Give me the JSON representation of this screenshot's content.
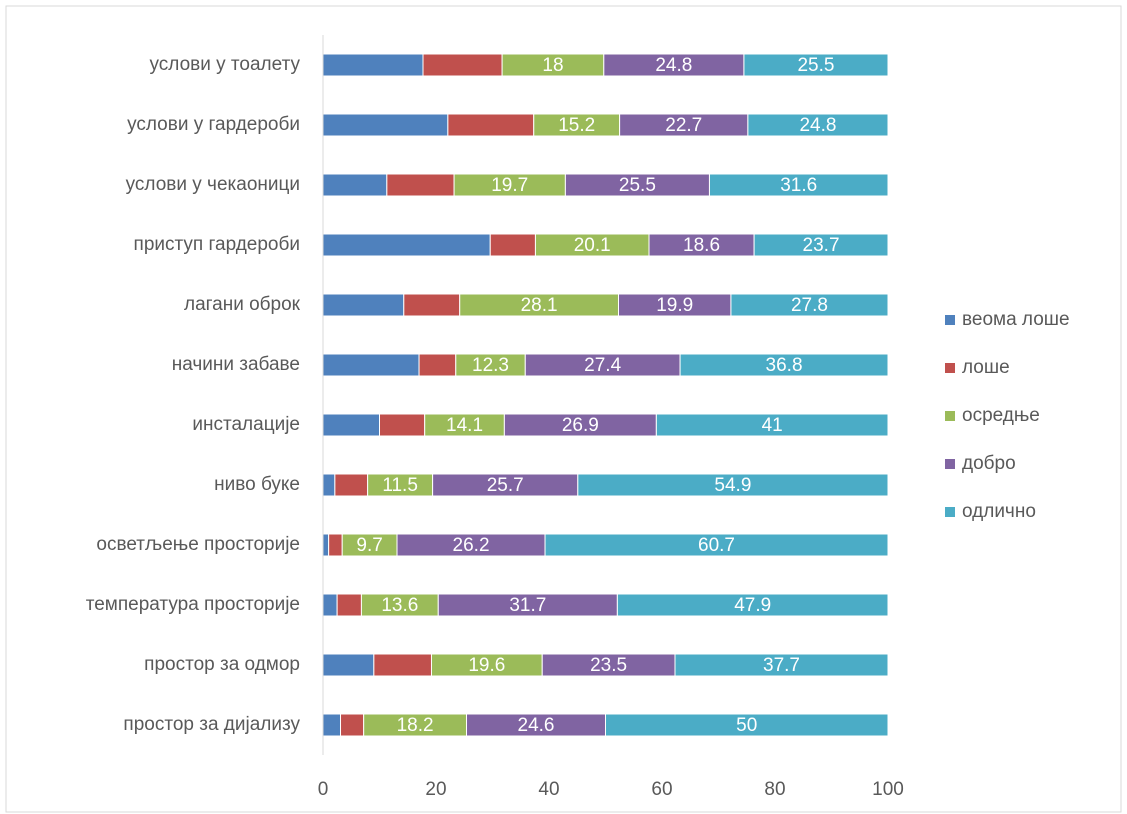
{
  "chart_data": {
    "type": "stacked_barh",
    "categories": [
      "услови у тоалету",
      "услови у гардероби",
      "услови у чекаоници",
      "приступ гардероби",
      "лагани оброк",
      "начини забаве",
      "инсталације",
      "ниво буке",
      "осветљење просторије",
      "температура просторије",
      "простор за одмор",
      "простор за дијализу"
    ],
    "series": [
      {
        "name": "веома лоше",
        "color": "#4f81bd",
        "show_labels": false,
        "values": [
          17.7,
          22.1,
          11.3,
          29.6,
          14.3,
          17.0,
          10.0,
          2.1,
          1.0,
          2.5,
          9.0,
          3.1
        ]
      },
      {
        "name": "лоше",
        "color": "#c0504d",
        "show_labels": false,
        "values": [
          14.0,
          15.2,
          11.9,
          8.0,
          9.9,
          6.5,
          8.0,
          5.8,
          2.4,
          4.3,
          10.2,
          4.1
        ]
      },
      {
        "name": "осредње",
        "color": "#9bbb59",
        "show_labels": true,
        "values": [
          18,
          15.2,
          19.7,
          20.1,
          28.1,
          12.3,
          14.1,
          11.5,
          9.7,
          13.6,
          19.6,
          18.2
        ]
      },
      {
        "name": "добро",
        "color": "#8064a2",
        "show_labels": true,
        "values": [
          24.8,
          22.7,
          25.5,
          18.6,
          19.9,
          27.4,
          26.9,
          25.7,
          26.2,
          31.7,
          23.5,
          24.6
        ]
      },
      {
        "name": "одлично",
        "color": "#4bacc6",
        "show_labels": true,
        "values": [
          25.5,
          24.8,
          31.6,
          23.7,
          27.8,
          36.8,
          41,
          54.9,
          60.7,
          47.9,
          37.7,
          50
        ]
      }
    ],
    "xlim": [
      0,
      100
    ],
    "xticks": [
      0,
      20,
      40,
      60,
      80,
      100
    ],
    "legend": "right"
  }
}
